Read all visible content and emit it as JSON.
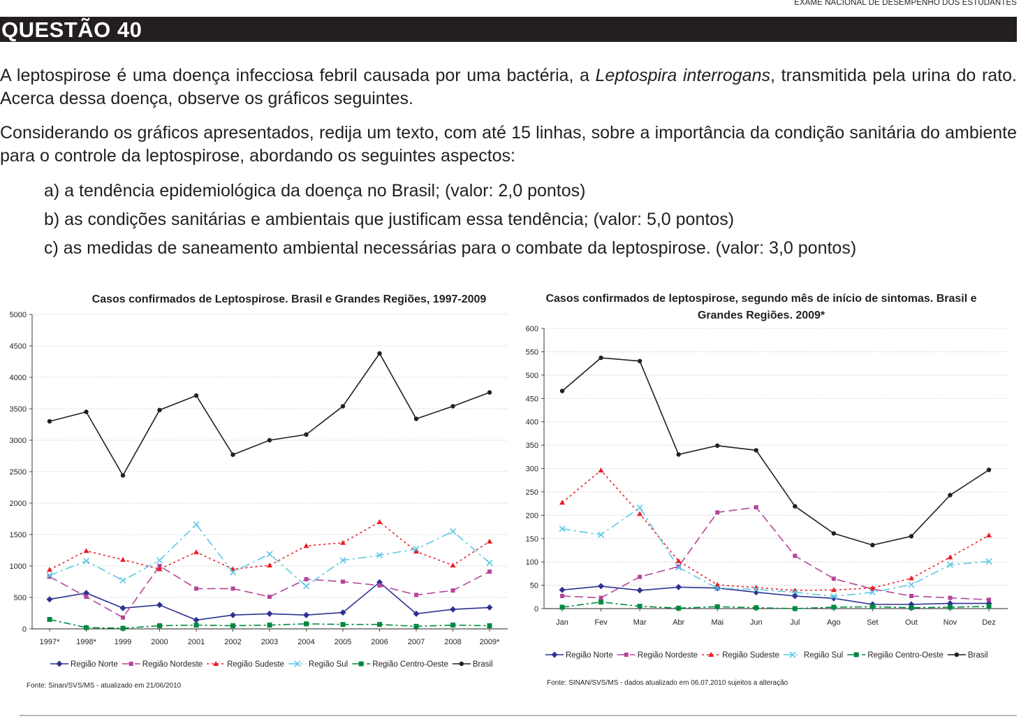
{
  "header": {
    "exam_name": "EXAME NACIONAL DE DESEMPENHO DOS ESTUDANTES"
  },
  "question": {
    "title": "QUESTÃO 40",
    "intro_before": "A leptospirose é uma doença infecciosa febril causada por uma bactéria, a ",
    "intro_italic": "Leptospira interrogans",
    "intro_after": ", transmitida pela urina do rato. Acerca dessa doença, observe os gráficos seguintes.",
    "prompt": "Considerando os gráficos apresentados, redija um texto, com até 15 linhas, sobre a importância da condição sanitária do ambiente para o controle da leptospirose, abordando os seguintes aspectos:",
    "items": [
      "a) a tendência epidemiológica da doença no Brasil; (valor: 2,0 pontos)",
      "b) as condições sanitárias e ambientais que justificam essa tendência; (valor: 5,0 pontos)",
      "c) as medidas de saneamento ambiental necessárias para o combate da leptospirose. (valor: 3,0 pontos)"
    ]
  },
  "styles": {
    "Região Norte": {
      "color": "#2e3192",
      "dash": "",
      "marker": "diamond"
    },
    "Região Nordeste": {
      "color": "#b5459a",
      "dash": "12 6",
      "marker": "square"
    },
    "Região Sudeste": {
      "color": "#ed1c24",
      "dash": "3 4",
      "marker": "triangle"
    },
    "Região Sul": {
      "color": "#5fc8e4",
      "dash": "12 5 3 5",
      "marker": "x"
    },
    "Região Centro-Oeste": {
      "color": "#00893f",
      "dash": "10 4 3 4",
      "marker": "bigsquare"
    },
    "Brasil": {
      "color": "#231f20",
      "dash": "",
      "marker": "circle"
    }
  },
  "chart_data": [
    {
      "type": "line",
      "title": "Casos confirmados de Leptospirose. Brasil e Grandes Regiões, 1997-2009",
      "categories": [
        "1997*",
        "1998*",
        "1999",
        "2000",
        "2001",
        "2002",
        "2003",
        "2004",
        "2005",
        "2006",
        "2007",
        "2008",
        "2009*"
      ],
      "yticks": [
        "0",
        "500",
        "1000",
        "1500",
        "2000",
        "2500",
        "3000",
        "3500",
        "4000",
        "4500",
        "5000"
      ],
      "ylim": [
        0,
        5000
      ],
      "grid": true,
      "legend_position": "bottom",
      "source": "Fonte: Sinan/SVS/MS - atualizado em 21/06/2010",
      "series": [
        {
          "name": "Região Norte",
          "values": [
            470,
            570,
            330,
            380,
            140,
            220,
            240,
            220,
            260,
            740,
            240,
            310,
            340
          ]
        },
        {
          "name": "Região Nordeste",
          "values": [
            830,
            510,
            180,
            1000,
            640,
            640,
            510,
            790,
            750,
            690,
            540,
            610,
            910
          ]
        },
        {
          "name": "Região Sudeste",
          "values": [
            940,
            1240,
            1100,
            950,
            1220,
            950,
            1010,
            1320,
            1370,
            1700,
            1230,
            1010,
            1390
          ]
        },
        {
          "name": "Região Sul",
          "values": [
            850,
            1080,
            770,
            1090,
            1660,
            900,
            1190,
            680,
            1090,
            1170,
            1270,
            1550,
            1050
          ]
        },
        {
          "name": "Região Centro-Oeste",
          "values": [
            150,
            20,
            10,
            50,
            60,
            50,
            60,
            80,
            70,
            70,
            40,
            60,
            50
          ]
        },
        {
          "name": "Brasil",
          "values": [
            3300,
            3450,
            2440,
            3480,
            3710,
            2770,
            3000,
            3090,
            3540,
            4380,
            3340,
            3540,
            3760
          ]
        }
      ]
    },
    {
      "type": "line",
      "title_line1": "Casos confirmados de leptospirose, segundo mês de início de sintomas. Brasil e",
      "title_line2": "Grandes Regiões. 2009*",
      "categories": [
        "Jan",
        "Fev",
        "Mar",
        "Abr",
        "Mai",
        "Jun",
        "Jul",
        "Ago",
        "Set",
        "Out",
        "Nov",
        "Dez"
      ],
      "yticks": [
        "0",
        "50",
        "100",
        "150",
        "200",
        "250",
        "300",
        "350",
        "400",
        "450",
        "500",
        "550",
        "600"
      ],
      "ylim": [
        0,
        600
      ],
      "grid": true,
      "legend_position": "bottom",
      "source": "Fonte: SINAN/SVS/MS - dados atualizado em  06.07.2010 sujeitos a alteração",
      "series": [
        {
          "name": "Região Norte",
          "values": [
            40,
            48,
            39,
            46,
            44,
            35,
            27,
            22,
            9,
            9,
            11,
            11
          ]
        },
        {
          "name": "Região Nordeste",
          "values": [
            27,
            23,
            68,
            90,
            206,
            217,
            113,
            64,
            42,
            27,
            23,
            19
          ]
        },
        {
          "name": "Região Sudeste",
          "values": [
            227,
            296,
            203,
            102,
            51,
            45,
            39,
            40,
            44,
            65,
            110,
            157
          ]
        },
        {
          "name": "Região Sul",
          "values": [
            171,
            158,
            216,
            88,
            44,
            41,
            35,
            26,
            35,
            51,
            94,
            101
          ]
        },
        {
          "name": "Região Centro-Oeste",
          "values": [
            3,
            14,
            5,
            1,
            4,
            2,
            0,
            3,
            4,
            2,
            3,
            5
          ]
        },
        {
          "name": "Brasil",
          "values": [
            466,
            537,
            530,
            330,
            349,
            339,
            219,
            161,
            136,
            155,
            243,
            297
          ]
        }
      ]
    }
  ]
}
